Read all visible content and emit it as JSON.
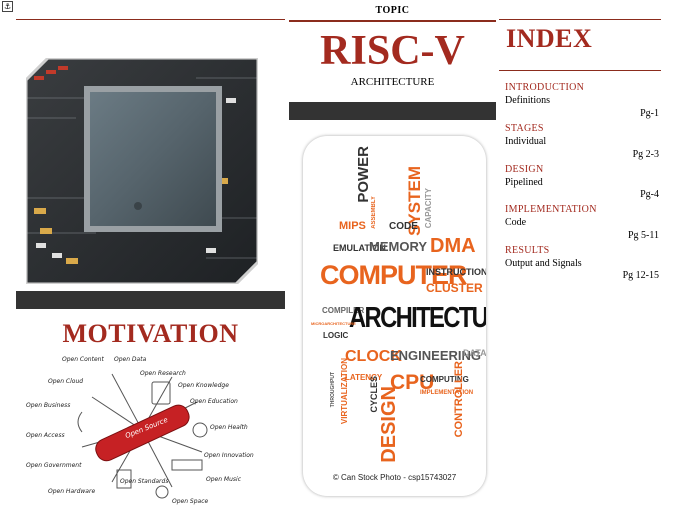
{
  "topic_label": "TOPIC",
  "title": "RISC-V",
  "subtitle": "ARCHITECTURE",
  "index": {
    "title": "INDEX",
    "entries": [
      {
        "heading": "INTRODUCTION",
        "sub": "Definitions",
        "page": "Pg-1"
      },
      {
        "heading": "STAGES",
        "sub": "Individual",
        "page": "Pg 2-3"
      },
      {
        "heading": "DESIGN",
        "sub": "Pipelined",
        "page": "Pg-4"
      },
      {
        "heading": "IMPLEMENTATION",
        "sub": "Code",
        "page": "Pg 5-11"
      },
      {
        "heading": "RESULTS",
        "sub": "Output and Signals",
        "page": "Pg 12-15"
      }
    ]
  },
  "motivation": "MOTIVATION",
  "word_cloud": {
    "words": [
      "POWER",
      "SYSTEM",
      "MIPS",
      "CODE",
      "DMA",
      "EMULATION",
      "MEMORY",
      "CAPACITY",
      "COMPUTER",
      "INSTRUCTION",
      "CLUSTER SET",
      "ASSEMBLY",
      "COMPILER",
      "ARCHITECTURE",
      "LOGIC",
      "CLOCK",
      "ENGINEERING",
      "DATA",
      "LATENCY",
      "CPU",
      "COMPUTING",
      "IMPLEMENTATION",
      "VIRTUALIZATION",
      "CYCLES",
      "DESIGN",
      "CONTROLLER",
      "THROUGHPUT",
      "MICROARCHITECTURE"
    ],
    "credit": "© Can Stock Photo - csp15743027"
  },
  "open_source": {
    "center": "Open Source",
    "labels": [
      "Open Content",
      "Open Data",
      "Open Research",
      "Open Cloud",
      "Open Knowledge",
      "Open Business",
      "Open Education",
      "Open Access",
      "Open Health",
      "Open Government",
      "Open Innovation",
      "Open Music",
      "Open Hardware",
      "Open Standards",
      "Open Space"
    ]
  },
  "colors": {
    "accent": "#a32a1f",
    "band": "#333333",
    "cloud_orange": "#e8641e",
    "cloud_dark": "#333333"
  }
}
